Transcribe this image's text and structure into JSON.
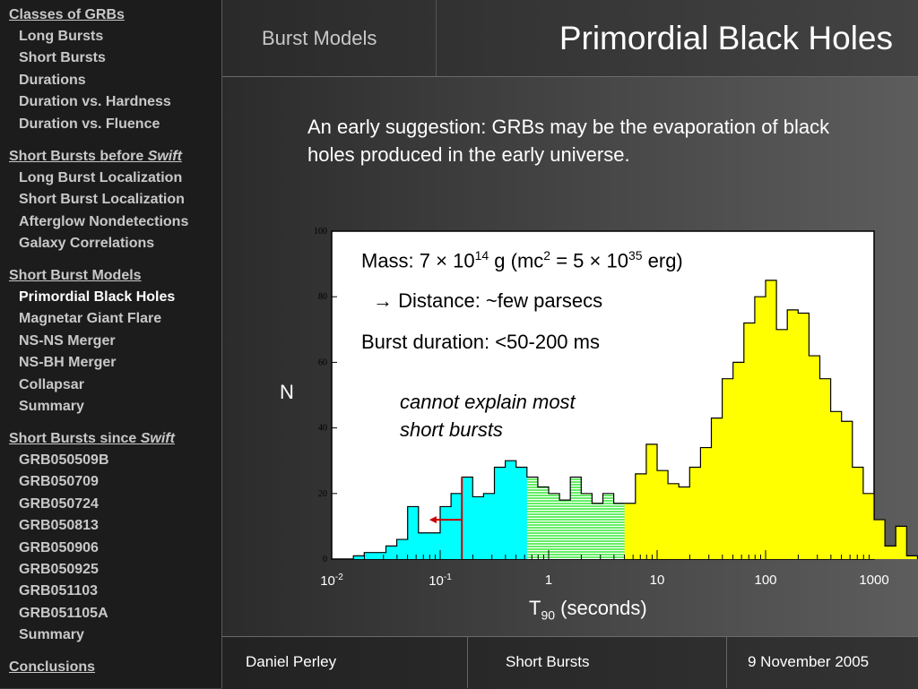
{
  "sidebar": {
    "sections": [
      {
        "label": "Classes of GRBs",
        "items": [
          "Long Bursts",
          "Short Bursts",
          "Durations",
          "Duration vs. Hardness",
          "Duration vs. Fluence"
        ]
      },
      {
        "label": "Short Bursts before ",
        "label_em": "Swift",
        "items": [
          "Long Burst Localization",
          "Short Burst Localization",
          "Afterglow Nondetections",
          "Galaxy Correlations"
        ]
      },
      {
        "label": "Short Burst Models",
        "items": [
          "Primordial Black Holes",
          "Magnetar Giant Flare",
          "NS-NS Merger",
          "NS-BH Merger",
          "Collapsar",
          "Summary"
        ],
        "current": "Primordial Black Holes"
      },
      {
        "label": "Short Bursts since ",
        "label_em": "Swift",
        "items": [
          "GRB050509B",
          "GRB050709",
          "GRB050724",
          "GRB050813",
          "GRB050906",
          "GRB050925",
          "GRB051103",
          "GRB051105A",
          "Summary"
        ]
      },
      {
        "label": "Conclusions",
        "items": []
      }
    ]
  },
  "header": {
    "subtitle": "Burst Models",
    "title": "Primordial Black Holes"
  },
  "intro": "An early suggestion:  GRBs may be the evaporation of black holes produced in the early universe.",
  "annotations": {
    "mass_prefix": "Mass:  7 × 10",
    "mass_exp1": "14",
    "mass_mid": " g  (mc",
    "mass_exp2": "2",
    "mass_mid2": " = 5 × 10",
    "mass_exp3": "35",
    "mass_suffix": " erg)",
    "distance": "→ Distance:  ~few parsecs",
    "duration": "Burst duration: <50-200 ms",
    "cannot1": "cannot explain most",
    "cannot2": "short bursts"
  },
  "chart_data": {
    "type": "bar",
    "ylabel": "N",
    "xlabel_main": "T",
    "xlabel_sub": "90",
    "xlabel_unit": " (seconds)",
    "ylim": [
      0,
      100
    ],
    "xscale": "log",
    "xlim_log10": [
      -2,
      3
    ],
    "y_ticks": [
      "0",
      "20",
      "40",
      "60",
      "80",
      "100"
    ],
    "x_ticks": [
      {
        "base": "10",
        "exp": "-2",
        "log10": -2
      },
      {
        "base": "10",
        "exp": "-1",
        "log10": -1
      },
      {
        "base": "1",
        "exp": "",
        "log10": 0
      },
      {
        "base": "10",
        "exp": "",
        "log10": 1
      },
      {
        "base": "100",
        "exp": "",
        "log10": 2
      },
      {
        "base": "1000",
        "exp": "",
        "log10": 3
      }
    ],
    "bin_width_log10": 0.1,
    "bin_start_log10": -1.8,
    "counts": [
      1,
      2,
      2,
      4,
      6,
      16,
      8,
      8,
      16,
      20,
      25,
      19,
      20,
      28,
      30,
      28,
      25,
      22,
      20,
      18,
      25,
      20,
      17,
      20,
      17,
      17,
      26,
      35,
      27,
      23,
      22,
      28,
      34,
      43,
      55,
      60,
      72,
      80,
      85,
      70,
      76,
      75,
      62,
      55,
      45,
      42,
      28,
      20,
      12,
      4,
      10,
      1
    ],
    "colors": {
      "cyan_until_log10": -0.6,
      "blue_end_log10": -0.2,
      "green_end_log10": 0.7,
      "cyan": "#00ffff",
      "green": "#66ee66",
      "yellow": "#ffff00"
    },
    "marker_log10": -0.8,
    "arrow_to_log10": -1.1,
    "arrow_color": "#cc0000"
  },
  "footer": {
    "author": "Daniel Perley",
    "topic": "Short Bursts",
    "date": "9 November 2005"
  }
}
